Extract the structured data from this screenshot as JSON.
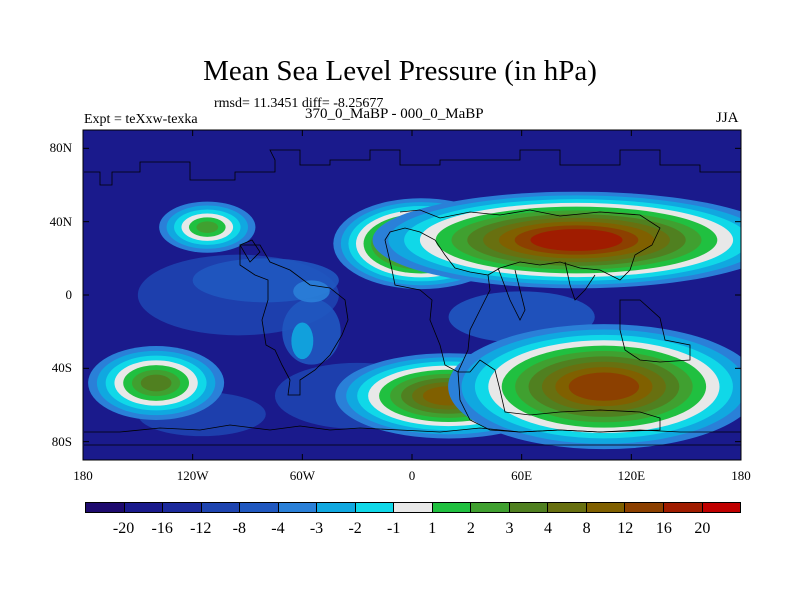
{
  "title": "Mean Sea Level Pressure (in hPa)",
  "stats": "rmsd= 11.3451 diff= -8.25677",
  "expt_label": "Expt = teXxw-texka",
  "comparison": "370_0_MaBP - 000_0_MaBP",
  "season": "JJA",
  "lat_labels": [
    "80N",
    "40N",
    "0",
    "40S",
    "80S"
  ],
  "lat_values": [
    80,
    40,
    0,
    -40,
    -80
  ],
  "lon_labels": [
    "180",
    "120W",
    "60W",
    "0",
    "60E",
    "120E",
    "180"
  ],
  "lon_values": [
    -180,
    -120,
    -60,
    0,
    60,
    120,
    180
  ],
  "map_extent": {
    "lon": [
      -180,
      180
    ],
    "lat": [
      -90,
      90
    ]
  },
  "colorbar": {
    "labels": [
      "-20",
      "-16",
      "-12",
      "-8",
      "-4",
      "-3",
      "-2",
      "-1",
      "1",
      "2",
      "3",
      "4",
      "8",
      "12",
      "16",
      "20"
    ],
    "colors": [
      "#1e0a6e",
      "#1a1a8c",
      "#1c2a9c",
      "#1e44b0",
      "#2058c0",
      "#2a80d8",
      "#10a8e0",
      "#10d8e8",
      "#e8e8e8",
      "#20c040",
      "#40a030",
      "#508020",
      "#687010",
      "#806000",
      "#8c4000",
      "#a01c00",
      "#c00000"
    ]
  },
  "fields": {
    "background": "#1a1a8c",
    "negative_bands": [
      {
        "lon": -95,
        "lat": 0,
        "rx": 55,
        "ry": 22,
        "level": "-8"
      },
      {
        "lon": -30,
        "lat": -55,
        "rx": 45,
        "ry": 18,
        "level": "-8"
      },
      {
        "lon": -115,
        "lat": -65,
        "rx": 35,
        "ry": 12,
        "level": "-8"
      },
      {
        "lon": -80,
        "lat": 8,
        "rx": 40,
        "ry": 12,
        "level": "-4"
      },
      {
        "lon": -55,
        "lat": -20,
        "rx": 16,
        "ry": 18,
        "level": "-4"
      },
      {
        "lon": 60,
        "lat": -12,
        "rx": 40,
        "ry": 14,
        "level": "-4"
      },
      {
        "lon": -55,
        "lat": 2,
        "rx": 10,
        "ry": 6,
        "level": "-3"
      },
      {
        "lon": -60,
        "lat": -25,
        "rx": 6,
        "ry": 10,
        "level": "-2"
      },
      {
        "lon": 20,
        "lat": 20,
        "rx": 15,
        "ry": 8,
        "level": "-4"
      }
    ],
    "highs": [
      {
        "lon": -112,
        "lat": 37,
        "rx": 17,
        "ry": 9,
        "peak": "2"
      },
      {
        "lon": 5,
        "lat": 28,
        "rx": 31,
        "ry": 16,
        "peak": "12"
      },
      {
        "lon": 90,
        "lat": 30,
        "rx": 72,
        "ry": 17,
        "peak": "16"
      },
      {
        "lon": -140,
        "lat": -48,
        "rx": 24,
        "ry": 13,
        "peak": "3"
      },
      {
        "lon": 20,
        "lat": -55,
        "rx": 40,
        "ry": 15,
        "peak": "8"
      },
      {
        "lon": 105,
        "lat": -50,
        "rx": 55,
        "ry": 22,
        "peak": "12"
      }
    ]
  }
}
